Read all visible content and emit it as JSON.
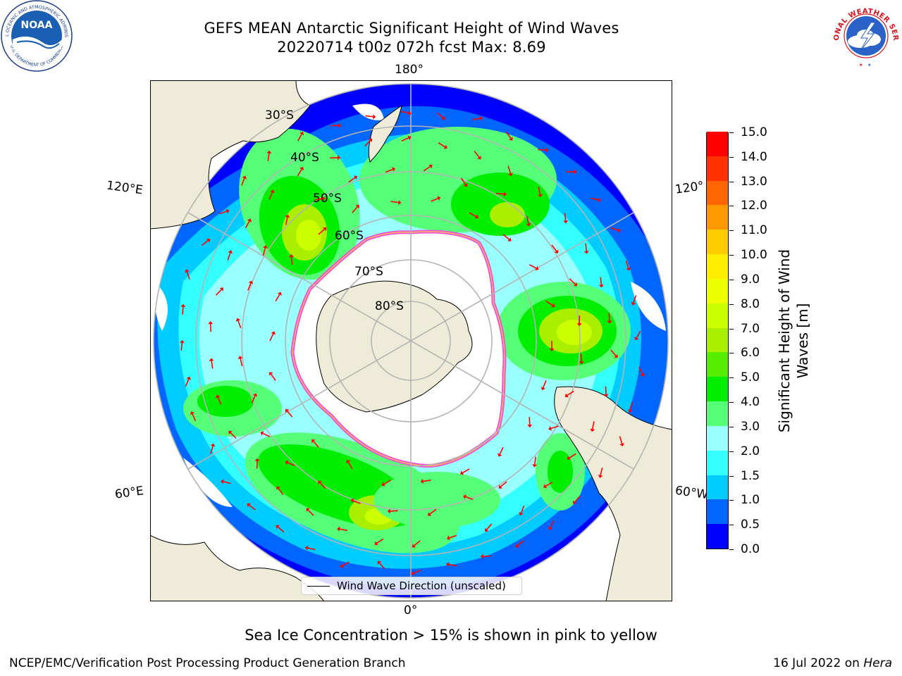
{
  "header": {
    "title_line1": "GEFS MEAN Antarctic Significant Height of Wind Waves",
    "title_line2": "20220714 t00z 072h fcst   Max: 8.69"
  },
  "logos": {
    "noaa_text": "NOAA",
    "noaa_ring_text": "NATIONAL OCEANIC AND ATMOSPHERIC ADMINISTRATION",
    "noaa_ring_text_bottom": "U.S. DEPARTMENT OF COMMERCE",
    "nws_ring_text": "NATIONAL WEATHER SERVICE"
  },
  "map": {
    "lon_labels": {
      "top": "180°",
      "bottom": "0°",
      "upper_left": "120°E",
      "lower_left": "60°E",
      "upper_right": "120°",
      "lower_right": "60°W"
    },
    "lat_labels": [
      "30°S",
      "40°S",
      "50°S",
      "60°S",
      "70°S",
      "80°S"
    ],
    "legend_label": "Wind Wave Direction (unscaled)",
    "colors": {
      "land": "#eeecd9",
      "ice": "#ffffff",
      "ice_edge": "#f050d8",
      "arrow": "#ff0000",
      "grid": "#b4b4b4"
    }
  },
  "colorbar": {
    "title_line1": "Significant Height of Wind",
    "title_line2": "Waves [m]",
    "ticks": [
      "0.0",
      "0.5",
      "1.0",
      "1.5",
      "2.0",
      "3.0",
      "4.0",
      "5.0",
      "6.0",
      "7.0",
      "8.0",
      "9.0",
      "10.0",
      "11.0",
      "12.0",
      "13.0",
      "14.0",
      "15.0"
    ],
    "colors": [
      "#0000ff",
      "#0066ff",
      "#00ccff",
      "#33ffff",
      "#99ffff",
      "#55ff77",
      "#00ee00",
      "#55ee00",
      "#aaee00",
      "#ccff00",
      "#eeff00",
      "#ffee00",
      "#ffcc00",
      "#ff9900",
      "#ff6600",
      "#ff3300",
      "#ff0000"
    ]
  },
  "note": "Sea Ice Concentration > 15% is shown in pink to yellow",
  "footer": {
    "left": "NCEP/EMC/Verification Post Processing Product Generation Branch",
    "right_prefix": "16 Jul 2022 on ",
    "right_host": "Hera"
  }
}
